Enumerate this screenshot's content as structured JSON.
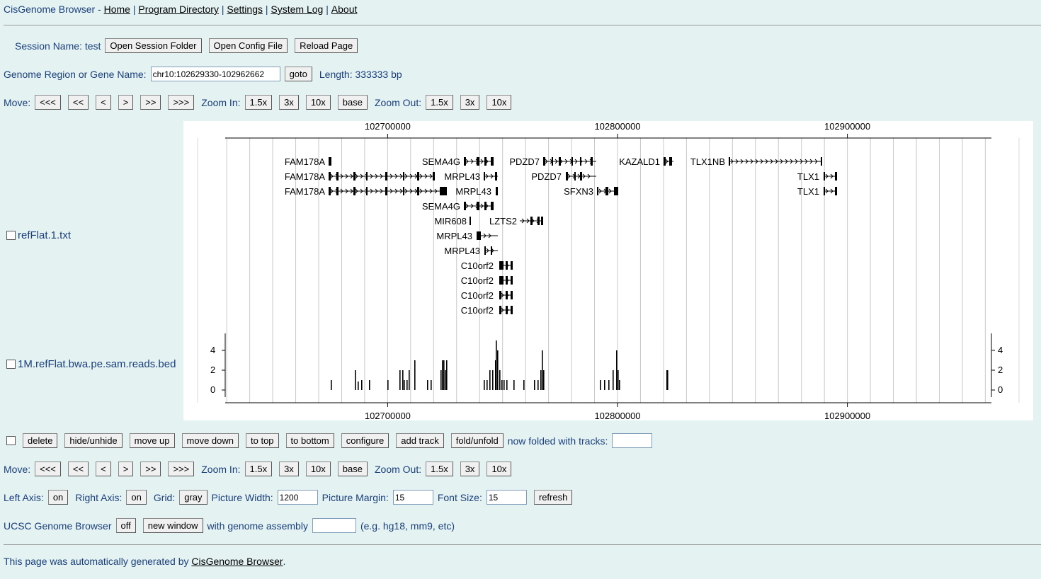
{
  "header": {
    "title": "CisGenome Browser",
    "sep": " - ",
    "links": [
      "Home",
      "Program Directory",
      "Settings",
      "System Log",
      "About"
    ]
  },
  "session": {
    "label": "Session Name: test",
    "buttons": [
      "Open Session Folder",
      "Open Config File",
      "Reload Page"
    ]
  },
  "region": {
    "label": "Genome Region or Gene Name:",
    "value": "chr10:102629330-102962662",
    "goto": "goto",
    "length": "Length: 333333 bp"
  },
  "nav": {
    "move_label": "Move:",
    "move": [
      "<<<",
      "<<",
      "<",
      ">",
      ">>",
      ">>>"
    ],
    "zoom_in_label": "Zoom In:",
    "zoom_in": [
      "1.5x",
      "3x",
      "10x",
      "base"
    ],
    "zoom_out_label": "Zoom Out:",
    "zoom_out": [
      "1.5x",
      "3x",
      "10x"
    ]
  },
  "tracks": {
    "gene_track": "refFlat.1.txt",
    "read_track": "1M.refFlat.bwa.pe.sam.reads.bed"
  },
  "chart_data": {
    "type": "genome-browser",
    "chrom": "chr10",
    "start": 102629330,
    "end": 102962662,
    "axis_ticks": [
      102700000,
      102800000,
      102900000
    ],
    "axis_tick_labels": [
      "102700000",
      "102800000",
      "102900000"
    ],
    "gene_labels": [
      "FAM178A",
      "SEMA4G",
      "PDZD7",
      "KAZALD1",
      "TLX1NB",
      "FAM178A",
      "MRPL43",
      "PDZD7",
      "TLX1",
      "FAM178A",
      "MRPL43",
      "SFXN3",
      "TLX1",
      "SEMA4G",
      "MIR608",
      "LZTS2",
      "MRPL43",
      "MRPL43",
      "C10orf2",
      "C10orf2",
      "C10orf2",
      "C10orf2"
    ],
    "read_yticks": [
      "0",
      "2",
      "4"
    ],
    "grid": true
  },
  "track_controls": {
    "buttons": [
      "delete",
      "hide/unhide",
      "move up",
      "move down",
      "to top",
      "to bottom",
      "configure",
      "add track",
      "fold/unfold"
    ],
    "folded_label": "now folded with tracks:"
  },
  "display": {
    "left_axis_label": "Left Axis:",
    "left_axis": "on",
    "right_axis_label": "Right Axis:",
    "right_axis": "on",
    "grid_label": "Grid:",
    "grid": "gray",
    "width_label": "Picture Width:",
    "width": "1200",
    "margin_label": "Picture Margin:",
    "margin": "15",
    "font_label": "Font Size:",
    "font": "15",
    "refresh": "refresh"
  },
  "ucsc": {
    "label": "UCSC Genome Browser",
    "off": "off",
    "new_window": "new window",
    "assembly_label": "with genome assembly",
    "hint": "(e.g. hg18, mm9, etc)"
  },
  "footer": {
    "text_before": "This page was automatically generated by ",
    "link": "CisGenome Browser",
    "text_after": "."
  }
}
